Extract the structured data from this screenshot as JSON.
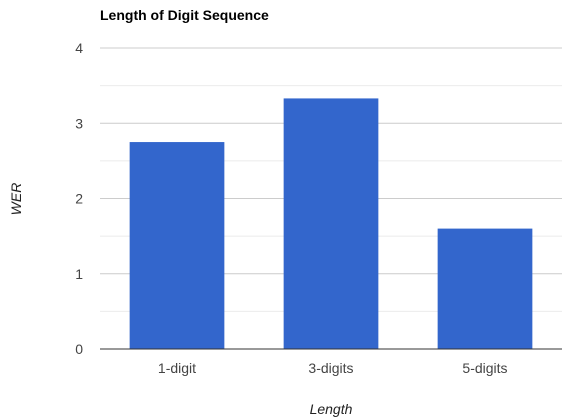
{
  "chart_data": {
    "type": "bar",
    "title": "Length of Digit Sequence",
    "xlabel": "Length",
    "ylabel": "WER",
    "categories": [
      "1-digit",
      "3-digits",
      "5-digits"
    ],
    "values": [
      2.75,
      3.33,
      1.6
    ],
    "ylim": [
      0,
      4
    ],
    "yticks": [
      "0",
      "1",
      "2",
      "3",
      "4"
    ],
    "grid": true,
    "legend": "none",
    "colors": {
      "bar": "#3366cc",
      "gridline": "#cccccc",
      "minor_gridline": "#ebebeb",
      "baseline": "#333333"
    }
  }
}
